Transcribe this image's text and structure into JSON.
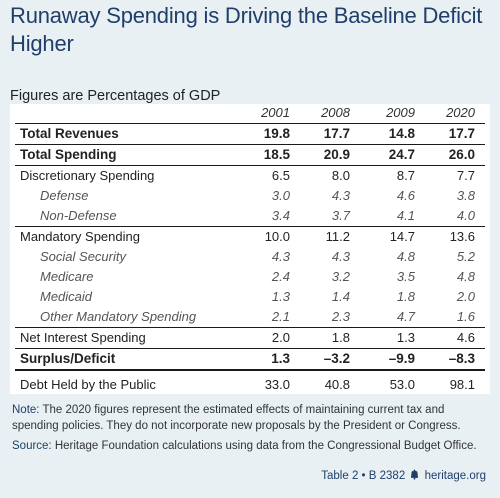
{
  "title": "Runaway Spending is Driving the Baseline Deficit Higher",
  "subtitle": "Figures are Percentages of GDP",
  "columns": [
    "2001",
    "2008",
    "2009",
    "2020"
  ],
  "rows": [
    {
      "label": "Total Revenues",
      "values": [
        "19.8",
        "17.7",
        "14.8",
        "17.7"
      ]
    },
    {
      "label": "Total Spending",
      "values": [
        "18.5",
        "20.9",
        "24.7",
        "26.0"
      ]
    },
    {
      "label": "Discretionary Spending",
      "values": [
        "6.5",
        "8.0",
        "8.7",
        "7.7"
      ]
    },
    {
      "label": "Defense",
      "values": [
        "3.0",
        "4.3",
        "4.6",
        "3.8"
      ]
    },
    {
      "label": "Non-Defense",
      "values": [
        "3.4",
        "3.7",
        "4.1",
        "4.0"
      ]
    },
    {
      "label": "Mandatory Spending",
      "values": [
        "10.0",
        "11.2",
        "14.7",
        "13.6"
      ]
    },
    {
      "label": "Social Security",
      "values": [
        "4.3",
        "4.3",
        "4.8",
        "5.2"
      ]
    },
    {
      "label": "Medicare",
      "values": [
        "2.4",
        "3.2",
        "3.5",
        "4.8"
      ]
    },
    {
      "label": "Medicaid",
      "values": [
        "1.3",
        "1.4",
        "1.8",
        "2.0"
      ]
    },
    {
      "label": "Other Mandatory Spending",
      "values": [
        "2.1",
        "2.3",
        "4.7",
        "1.6"
      ]
    },
    {
      "label": "Net Interest Spending",
      "values": [
        "2.0",
        "1.8",
        "1.3",
        "4.6"
      ]
    },
    {
      "label": "Surplus/Deficit",
      "values": [
        "1.3",
        "–3.2",
        "–9.9",
        "–8.3"
      ]
    },
    {
      "label": "Debt Held by the Public",
      "values": [
        "33.0",
        "40.8",
        "53.0",
        "98.1"
      ]
    }
  ],
  "notes": {
    "note_label": "Note:",
    "note_text": " The 2020 figures represent the estimated effects of maintaining current tax and spending policies. They do not incorporate new proposals by the President or Congress.",
    "source_label": "Source:",
    "source_text": " Heritage Foundation calculations using data from the Congressional Budget Office."
  },
  "footer": {
    "table_ref": "Table 2 • B 2382",
    "site": "heritage.org"
  },
  "colors": {
    "title": "#1f3f6a",
    "background": "#e9f0f3"
  }
}
